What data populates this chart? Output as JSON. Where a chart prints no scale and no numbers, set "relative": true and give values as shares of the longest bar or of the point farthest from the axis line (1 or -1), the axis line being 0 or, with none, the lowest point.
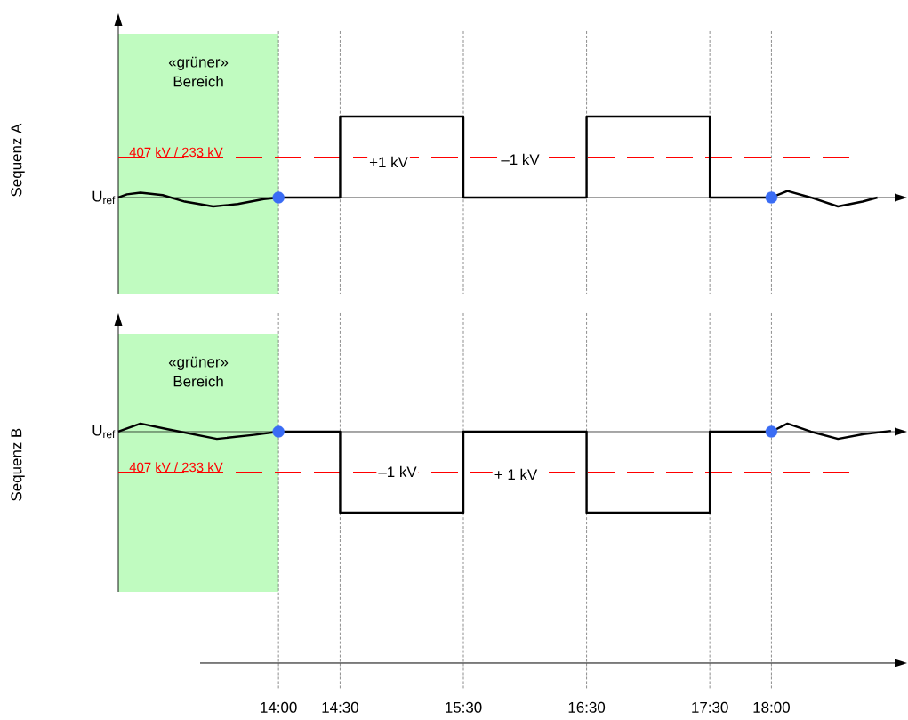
{
  "chart_data": [
    {
      "type": "line",
      "ylabel": "Sequenz A",
      "relative": true,
      "xlim": [
        12.7,
        19
      ],
      "xticks": [
        {
          "value": 14,
          "label": null
        },
        {
          "value": 14.5,
          "label": null
        },
        {
          "value": 15.5,
          "label": null
        },
        {
          "value": 16.5,
          "label": null
        },
        {
          "value": 17.5,
          "label": null
        },
        {
          "value": 18,
          "label": null
        }
      ],
      "tick_labels": false,
      "grid": "x",
      "line_style": "solid",
      "series": [
        {
          "color": "#000000",
          "x": [
            12.7,
            12.77,
            12.88,
            13.06,
            13.24,
            13.47,
            13.67,
            13.88,
            14,
            14.5,
            14.5,
            15.5,
            15.5,
            16.5,
            16.5,
            17.5,
            17.5,
            18,
            18.13,
            18.32,
            18.54,
            18.74,
            18.86
          ],
          "values": [
            0,
            0.04,
            0.06,
            0.03,
            -0.05,
            -0.11,
            -0.08,
            -0.02,
            0,
            0,
            1,
            1,
            0,
            0,
            1,
            1,
            0,
            0,
            0.08,
            0,
            -0.11,
            -0.05,
            0
          ]
        },
        {
          "type": "scatter",
          "color": "#3a6cf4",
          "x": [
            14,
            18
          ],
          "values": [
            0,
            0
          ]
        }
      ],
      "ref_lines": [
        {
          "axis": "y",
          "value": 0.5,
          "label": "407 kV / 233 kV",
          "color": "#ff0000",
          "line_style": "dashed"
        }
      ],
      "bands": [
        {
          "axis": "x",
          "from": 12.7,
          "to": 14,
          "label": "«grüner» Bereich",
          "color": "#c0fbc0"
        }
      ],
      "annotations": [
        "U$_{ref}$",
        "+1 kV",
        "–1 kV"
      ]
    },
    {
      "type": "line",
      "ylabel": "Sequenz B",
      "relative": true,
      "xlim": [
        12.7,
        19
      ],
      "xticks": [
        {
          "value": 14,
          "label": "14:00"
        },
        {
          "value": 14.5,
          "label": "14:30"
        },
        {
          "value": 15.5,
          "label": "15:30"
        },
        {
          "value": 16.5,
          "label": "16:30"
        },
        {
          "value": 17.5,
          "label": "17:30"
        },
        {
          "value": 18,
          "label": "18:00"
        }
      ],
      "tick_labels": "x",
      "grid": "x",
      "line_style": "solid",
      "series": [
        {
          "color": "#000000",
          "x": [
            12.7,
            12.88,
            13.1,
            13.5,
            13.8,
            14,
            14.5,
            14.5,
            15.5,
            15.5,
            16.5,
            16.5,
            17.5,
            17.5,
            18,
            18.13,
            18.32,
            18.54,
            18.75,
            18.97
          ],
          "values": [
            0,
            0.1,
            0.03,
            -0.09,
            -0.04,
            0,
            0,
            -1,
            -1,
            0,
            0,
            -1,
            -1,
            0,
            0,
            0.1,
            0,
            -0.09,
            -0.03,
            0.01
          ]
        },
        {
          "type": "scatter",
          "color": "#3a6cf4",
          "x": [
            14,
            18
          ],
          "values": [
            0,
            0
          ]
        }
      ],
      "ref_lines": [
        {
          "axis": "y",
          "value": -0.5,
          "label": "407 kV / 233 kV",
          "color": "#ff0000",
          "line_style": "dashed"
        }
      ],
      "bands": [
        {
          "axis": "x",
          "from": 12.7,
          "to": 14,
          "label": "«grüner» Bereich",
          "color": "#c0fbc0"
        }
      ],
      "annotations": [
        "U$_{ref}$",
        "–1 kV",
        "+ 1 kV"
      ]
    }
  ]
}
